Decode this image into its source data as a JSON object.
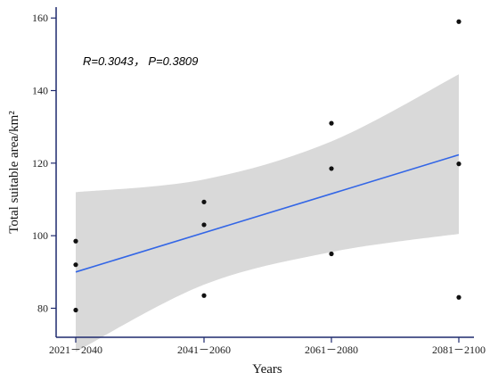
{
  "chart_data": {
    "type": "scatter",
    "title": "",
    "xlabel": "Years",
    "ylabel": "Total suitable area/km²",
    "categories": [
      "2021－2040",
      "2041－2060",
      "2061－2080",
      "2081－2100"
    ],
    "points": [
      {
        "x": "2021－2040",
        "y": 98.5
      },
      {
        "x": "2021－2040",
        "y": 92
      },
      {
        "x": "2021－2040",
        "y": 79.5
      },
      {
        "x": "2041－2060",
        "y": 109.3
      },
      {
        "x": "2041－2060",
        "y": 103
      },
      {
        "x": "2041－2060",
        "y": 83.5
      },
      {
        "x": "2061－2080",
        "y": 131
      },
      {
        "x": "2061－2080",
        "y": 118.5
      },
      {
        "x": "2061－2080",
        "y": 95
      },
      {
        "x": "2081－2100",
        "y": 159
      },
      {
        "x": "2081－2100",
        "y": 119.8
      },
      {
        "x": "2081－2100",
        "y": 83
      }
    ],
    "fit_line": {
      "start": 90,
      "end": 122.3,
      "color": "#3366e6"
    },
    "confidence_band": {
      "upper": [
        112,
        115.5,
        126,
        144.5
      ],
      "lower": [
        68,
        86.5,
        95.5,
        100.5
      ],
      "color": "#d9d9d9"
    },
    "annotation": "R=0.3043， P=0.3809",
    "yticks": [
      80,
      100,
      120,
      140,
      160
    ],
    "ylim": [
      72,
      163
    ],
    "grid": false,
    "axis_color": "#1f2a6e",
    "point_color": "#111111"
  }
}
